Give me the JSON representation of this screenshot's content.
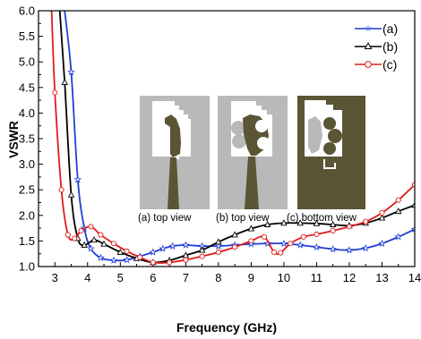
{
  "chart_data": {
    "type": "line",
    "xlabel": "Frequency (GHz)",
    "ylabel": "VSWR",
    "xlim": [
      2.5,
      14
    ],
    "ylim": [
      1.0,
      6.0
    ],
    "xticks": [
      3,
      4,
      5,
      6,
      7,
      8,
      9,
      10,
      11,
      12,
      13,
      14
    ],
    "yticks": [
      "1.0",
      "1.5",
      "2.0",
      "2.5",
      "3.0",
      "3.5",
      "4.0",
      "4.5",
      "5.0",
      "5.5",
      "6.0"
    ],
    "legend_position": "top-right",
    "series": [
      {
        "name": "(a)",
        "color": "#1f3fd6",
        "marker": "star",
        "x": [
          3.3,
          3.5,
          3.7,
          3.9,
          4.1,
          4.4,
          4.8,
          5.2,
          5.6,
          6.0,
          6.3,
          6.6,
          7.0,
          7.5,
          8.0,
          8.5,
          9.0,
          9.5,
          10.0,
          10.5,
          11.0,
          11.5,
          12.0,
          12.5,
          13.0,
          13.5,
          14.0
        ],
        "y": [
          6.0,
          4.8,
          2.7,
          1.75,
          1.35,
          1.17,
          1.12,
          1.13,
          1.2,
          1.28,
          1.35,
          1.4,
          1.42,
          1.4,
          1.4,
          1.42,
          1.44,
          1.45,
          1.45,
          1.42,
          1.38,
          1.34,
          1.32,
          1.36,
          1.45,
          1.58,
          1.73
        ]
      },
      {
        "name": "(b)",
        "color": "#000000",
        "marker": "triangle",
        "x": [
          3.15,
          3.3,
          3.5,
          3.7,
          3.9,
          4.2,
          4.5,
          5.0,
          5.5,
          6.0,
          6.5,
          7.0,
          7.5,
          8.0,
          8.5,
          9.0,
          9.5,
          10.0,
          10.5,
          11.0,
          11.5,
          12.0,
          12.5,
          13.0,
          13.5,
          14.0
        ],
        "y": [
          6.0,
          4.6,
          2.4,
          1.55,
          1.42,
          1.52,
          1.44,
          1.28,
          1.16,
          1.08,
          1.12,
          1.22,
          1.32,
          1.48,
          1.62,
          1.74,
          1.82,
          1.85,
          1.85,
          1.84,
          1.82,
          1.8,
          1.85,
          1.95,
          2.08,
          2.2
        ]
      },
      {
        "name": "(c)",
        "color": "#e01b1b",
        "marker": "circle",
        "x": [
          2.9,
          3.0,
          3.2,
          3.4,
          3.6,
          3.8,
          4.1,
          4.4,
          4.8,
          5.2,
          5.6,
          6.0,
          6.5,
          7.0,
          7.5,
          8.0,
          8.5,
          9.0,
          9.4,
          9.7,
          9.9,
          10.2,
          10.6,
          11.0,
          11.5,
          12.0,
          12.5,
          13.0,
          13.5,
          14.0
        ],
        "y": [
          6.0,
          4.4,
          2.5,
          1.62,
          1.55,
          1.7,
          1.78,
          1.62,
          1.45,
          1.3,
          1.18,
          1.08,
          1.08,
          1.13,
          1.2,
          1.28,
          1.38,
          1.5,
          1.58,
          1.28,
          1.27,
          1.45,
          1.58,
          1.63,
          1.7,
          1.78,
          1.88,
          2.05,
          2.3,
          2.6
        ]
      }
    ],
    "inset_captions": [
      "(a) top view",
      "(b) top view",
      "(c) bottom view"
    ],
    "inset_colors": {
      "olive": "#5a5535",
      "grey": "#b9b9b9"
    }
  }
}
